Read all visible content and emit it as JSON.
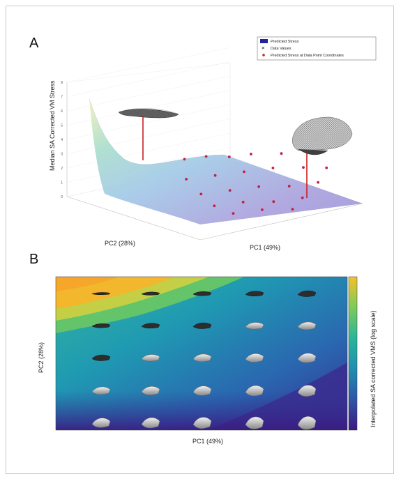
{
  "figure": {
    "panel_a_label": "A",
    "panel_b_label": "B"
  },
  "chart_data": [
    {
      "type": "scatter",
      "panel": "A",
      "zlabel": "Median SA Corrected VM Stress",
      "xlabel": "PC1 (49%)",
      "ylabel": "PC2 (28%)",
      "legend": {
        "position": "top-right",
        "entries": [
          "Predicted Stress",
          "Data Values",
          "Predicted Stress at Data Point Coordinates"
        ]
      },
      "surface_color": "#8b87c9",
      "points": [
        {
          "pc1": -0.16,
          "pc2": 0.08,
          "stress": 1.6
        },
        {
          "pc1": -0.1,
          "pc2": 0.08,
          "stress": 1.5
        },
        {
          "pc1": -0.04,
          "pc2": 0.07,
          "stress": 1.4
        },
        {
          "pc1": 0.02,
          "pc2": 0.07,
          "stress": 1.3
        },
        {
          "pc1": 0.1,
          "pc2": 0.06,
          "stress": 1.2
        },
        {
          "pc1": 0.18,
          "pc2": 0.06,
          "stress": 1.2
        },
        {
          "pc1": -0.18,
          "pc2": 0.02,
          "stress": 1.4
        },
        {
          "pc1": -0.1,
          "pc2": 0.02,
          "stress": 1.3
        },
        {
          "pc1": -0.02,
          "pc2": 0.02,
          "stress": 1.2
        },
        {
          "pc1": 0.06,
          "pc2": 0.02,
          "stress": 1.1
        },
        {
          "pc1": 0.14,
          "pc2": 0.01,
          "stress": 1.1
        },
        {
          "pc1": 0.2,
          "pc2": 0.0,
          "stress": 1.1
        },
        {
          "pc1": -0.16,
          "pc2": -0.03,
          "stress": 1.2
        },
        {
          "pc1": -0.08,
          "pc2": -0.03,
          "stress": 1.1
        },
        {
          "pc1": 0.0,
          "pc2": -0.03,
          "stress": 1.1
        },
        {
          "pc1": 0.08,
          "pc2": -0.04,
          "stress": 1.0
        },
        {
          "pc1": 0.16,
          "pc2": -0.04,
          "stress": 1.0
        },
        {
          "pc1": -0.14,
          "pc2": -0.07,
          "stress": 1.1
        },
        {
          "pc1": -0.06,
          "pc2": -0.07,
          "stress": 1.0
        },
        {
          "pc1": 0.02,
          "pc2": -0.08,
          "stress": 1.0
        },
        {
          "pc1": 0.1,
          "pc2": -0.08,
          "stress": 0.9
        },
        {
          "pc1": -0.1,
          "pc2": -0.1,
          "stress": 1.0
        },
        {
          "pc1": -0.02,
          "pc2": -0.1,
          "stress": 0.9
        },
        {
          "pc1": 0.06,
          "pc2": -0.11,
          "stress": 0.9
        }
      ]
    },
    {
      "type": "heatmap",
      "panel": "B",
      "xlabel": "PC1 (49%)",
      "ylabel": "PC2 (28%)",
      "colorbar_label": "Interpolated SA corrected VMS (log scale)",
      "colormap": [
        "#3b1a80",
        "#2f56a8",
        "#1f8fb0",
        "#2ab59a",
        "#7ccb5a",
        "#e6c735",
        "#f4c12b"
      ],
      "grid_rows": 5,
      "grid_cols": 5
    }
  ]
}
